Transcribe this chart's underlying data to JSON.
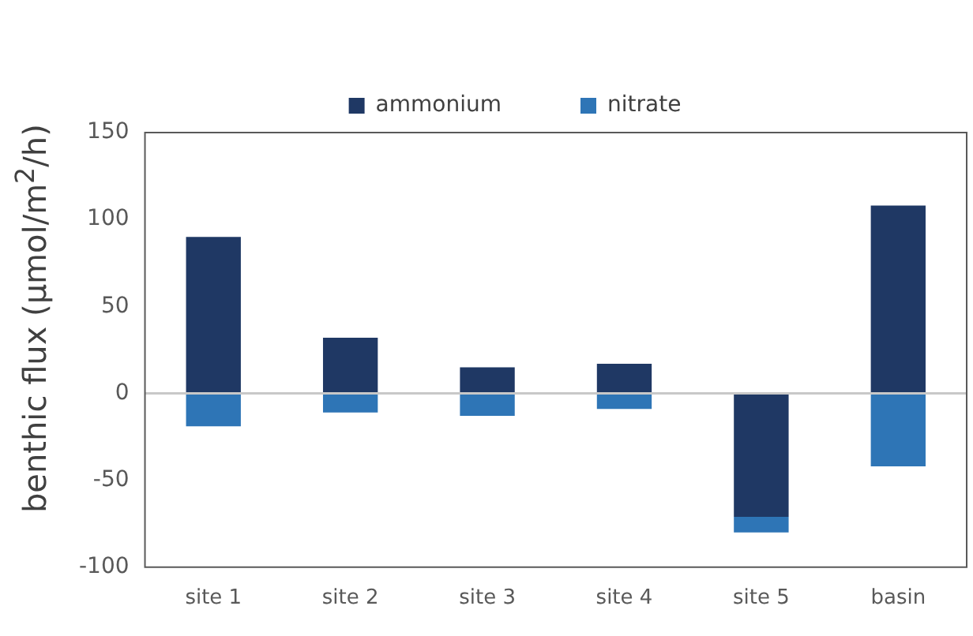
{
  "chart_data": {
    "type": "bar",
    "stacked": true,
    "ylabel": "benthic flux (µmol/m$^{2}$/h)",
    "categories": [
      "site 1",
      "site 2",
      "site 3",
      "site 4",
      "site 5",
      "basin"
    ],
    "series": [
      {
        "name": "ammonium",
        "color": "#1f3864",
        "values": [
          90,
          32,
          15,
          17,
          -71,
          108
        ]
      },
      {
        "name": "nitrate",
        "color": "#2e75b6",
        "values": [
          -19,
          -11,
          -13,
          -9,
          -9,
          -42
        ]
      }
    ],
    "ylim": [
      -100,
      150
    ],
    "yticks": [
      -100,
      -50,
      0,
      50,
      100,
      150
    ],
    "grid": false,
    "legend": "top",
    "ref_lines": [
      {
        "axis": "y",
        "value": 0,
        "color": "#c8c8c8"
      }
    ]
  }
}
